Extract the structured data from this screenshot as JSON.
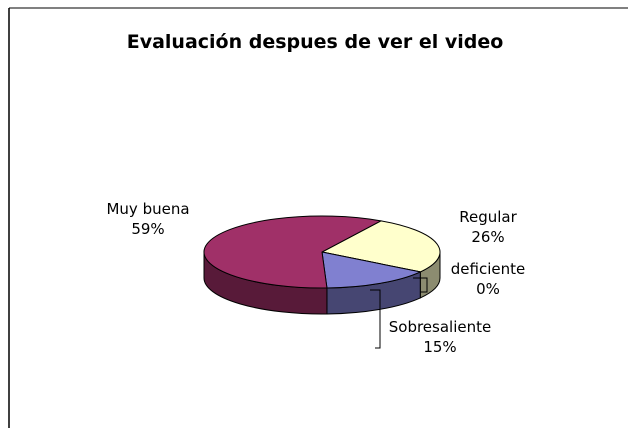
{
  "chart_data": {
    "type": "pie3d",
    "title": "Evaluación despues de ver el video",
    "categories": [
      "Regular",
      "deficiente",
      "Sobresaliente",
      "Muy buena"
    ],
    "values": [
      26,
      0,
      15,
      59
    ],
    "value_labels": [
      "26%",
      "0%",
      "15%",
      "59%"
    ],
    "colors": [
      "#ffffcc",
      "#ccffcc",
      "#8080d0",
      "#a03068"
    ]
  }
}
